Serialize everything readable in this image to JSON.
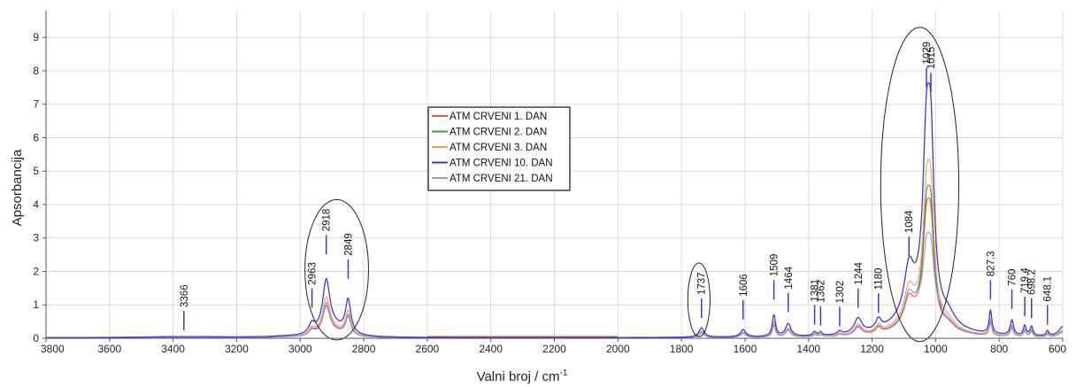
{
  "chart_data": {
    "type": "line",
    "title": "",
    "xlabel": "Valni broj / cm",
    "xlabel_sup": "-1",
    "ylabel": "Apsorbancija",
    "xlim": [
      3800,
      600
    ],
    "ylim": [
      0,
      9.8
    ],
    "x_reversed": true,
    "grid": true,
    "legend_position": "upper-center",
    "x_ticks": [
      "3800",
      "3600",
      "3400",
      "3200",
      "3000",
      "2800",
      "2600",
      "2400",
      "2200",
      "2000",
      "1800",
      "1600",
      "1400",
      "1200",
      "1000",
      "800",
      "600"
    ],
    "y_ticks": [
      "0",
      "1",
      "2",
      "3",
      "4",
      "5",
      "6",
      "7",
      "8",
      "9"
    ],
    "series": [
      {
        "name": "ATM CRVENI 1. DAN",
        "color": "#e8534a",
        "scale": 0.55
      },
      {
        "name": "ATM CRVENI 2. DAN",
        "color": "#3f9a3c",
        "scale": 0.6
      },
      {
        "name": "ATM CRVENI 3. DAN",
        "color": "#f0a050",
        "scale": 0.7
      },
      {
        "name": "ATM CRVENI 10. DAN",
        "color": "#3a3ad8",
        "scale": 1.0
      },
      {
        "name": "ATM CRVENI 21. DAN",
        "color": "#9a9ae8",
        "scale": 0.6
      }
    ],
    "peaks": [
      {
        "x": 3366,
        "y": 0.08,
        "label": "3366"
      },
      {
        "x": 2963,
        "y": 0.75,
        "label": "2963"
      },
      {
        "x": 2918,
        "y": 2.35,
        "label": "2918"
      },
      {
        "x": 2849,
        "y": 1.62,
        "label": "2849"
      },
      {
        "x": 1737,
        "y": 0.45,
        "label": "1737"
      },
      {
        "x": 1606,
        "y": 0.4,
        "label": "1606"
      },
      {
        "x": 1509,
        "y": 1.0,
        "label": "1509"
      },
      {
        "x": 1464,
        "y": 0.62,
        "label": "1464"
      },
      {
        "x": 1381,
        "y": 0.25,
        "label": "1381"
      },
      {
        "x": 1362,
        "y": 0.22,
        "label": "1362"
      },
      {
        "x": 1302,
        "y": 0.2,
        "label": "1302"
      },
      {
        "x": 1244,
        "y": 0.75,
        "label": "1244"
      },
      {
        "x": 1180,
        "y": 0.6,
        "label": "1180"
      },
      {
        "x": 1084,
        "y": 2.3,
        "label": "1084"
      },
      {
        "x": 1029,
        "y": 7.35,
        "label": "1029"
      },
      {
        "x": 1015,
        "y": 7.2,
        "label": "1015"
      },
      {
        "x": 827.3,
        "y": 1.0,
        "label": "827.3"
      },
      {
        "x": 760,
        "y": 0.72,
        "label": "760"
      },
      {
        "x": 719.4,
        "y": 0.5,
        "label": "719.4"
      },
      {
        "x": 698.2,
        "y": 0.45,
        "label": "698.2"
      },
      {
        "x": 648.1,
        "y": 0.25,
        "label": "648.1"
      }
    ],
    "annotations": [
      {
        "type": "ellipse",
        "x_center": 2885,
        "y_center": 2.05,
        "x_radius": 100,
        "y_radius": 2.1
      },
      {
        "type": "ellipse",
        "x_center": 1745,
        "y_center": 1.15,
        "x_radius": 35,
        "y_radius": 1.1
      },
      {
        "type": "ellipse",
        "x_center": 1050,
        "y_center": 4.6,
        "x_radius": 123,
        "y_radius": 4.7
      }
    ]
  }
}
